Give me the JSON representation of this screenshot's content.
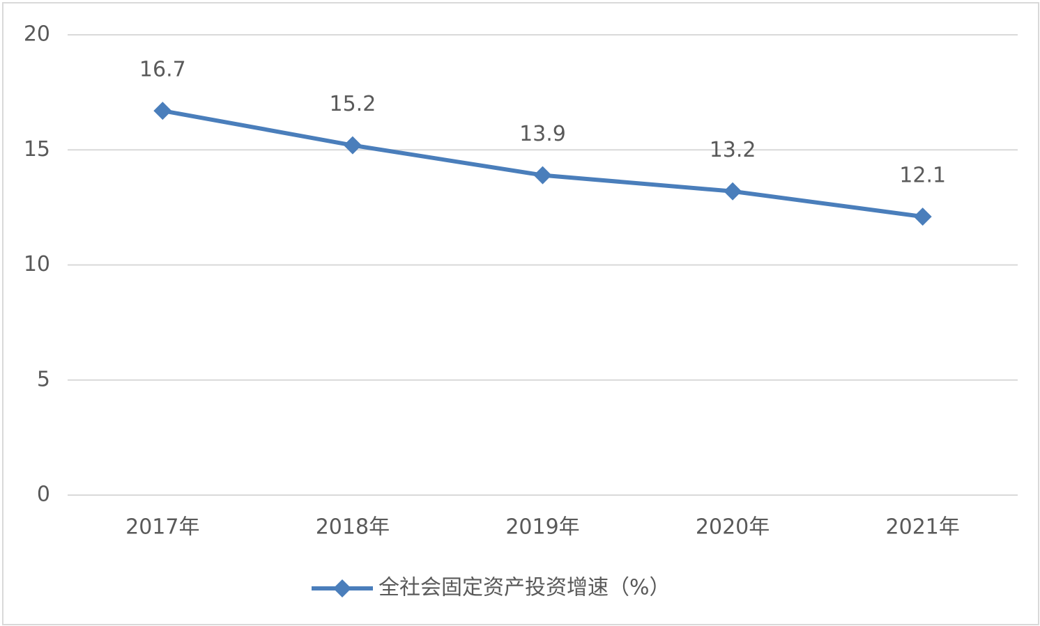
{
  "chart_data": {
    "type": "line",
    "categories": [
      "2017年",
      "2018年",
      "2019年",
      "2020年",
      "2021年"
    ],
    "series": [
      {
        "name": "全社会固定资产投资增速（%）",
        "color": "#4a7ebb",
        "values": [
          16.7,
          15.2,
          13.9,
          13.2,
          12.1
        ]
      }
    ],
    "ylim": [
      0,
      20
    ],
    "yticks": [
      0,
      5,
      10,
      15,
      20
    ],
    "grid": true,
    "legend": "bottom"
  }
}
